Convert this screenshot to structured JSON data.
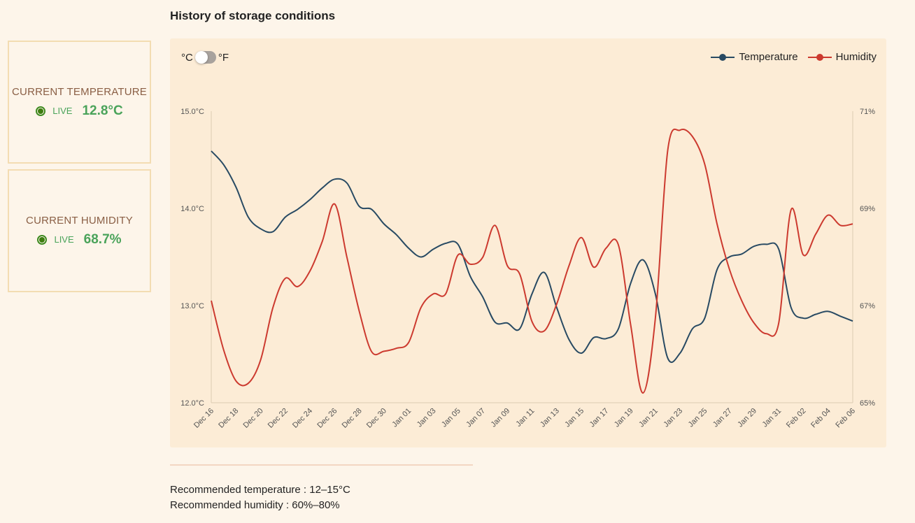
{
  "cards": {
    "temperature": {
      "title": "CURRENT TEMPERATURE",
      "live_label": "LIVE",
      "value": "12.8°C"
    },
    "humidity": {
      "title": "CURRENT HUMIDITY",
      "live_label": "LIVE",
      "value": "68.7%"
    }
  },
  "section_title": "History of storage conditions",
  "unit_toggle": {
    "left_label": "°C",
    "right_label": "°F",
    "selected": "°C"
  },
  "recommendations": {
    "temperature": "Recommended temperature : 12–15°C",
    "humidity": "Recommended humidity : 60%–80%"
  },
  "colors": {
    "temperature": "#284a63",
    "humidity": "#cc3a2f",
    "live": "#4aa35a",
    "card_border": "#f3dcb2",
    "panel_bg": "#fcecd6"
  },
  "chart_data": {
    "type": "line",
    "title": "History of storage conditions",
    "legend": [
      "Temperature",
      "Humidity"
    ],
    "legend_position": "top-right",
    "grid": false,
    "x": [
      "Dec 16",
      "Dec 17",
      "Dec 18",
      "Dec 19",
      "Dec 20",
      "Dec 21",
      "Dec 22",
      "Dec 23",
      "Dec 24",
      "Dec 25",
      "Dec 26",
      "Dec 27",
      "Dec 28",
      "Dec 29",
      "Dec 30",
      "Dec 31",
      "Jan 01",
      "Jan 02",
      "Jan 03",
      "Jan 04",
      "Jan 05",
      "Jan 06",
      "Jan 07",
      "Jan 08",
      "Jan 09",
      "Jan 10",
      "Jan 11",
      "Jan 12",
      "Jan 13",
      "Jan 14",
      "Jan 15",
      "Jan 16",
      "Jan 17",
      "Jan 18",
      "Jan 19",
      "Jan 20",
      "Jan 21",
      "Jan 22",
      "Jan 23",
      "Jan 24",
      "Jan 25",
      "Jan 26",
      "Jan 27",
      "Jan 28",
      "Jan 29",
      "Jan 30",
      "Jan 31",
      "Feb 01",
      "Feb 02",
      "Feb 03",
      "Feb 04",
      "Feb 05",
      "Feb 06"
    ],
    "x_tick_labels": [
      "Dec 16",
      "Dec 18",
      "Dec 20",
      "Dec 22",
      "Dec 24",
      "Dec 26",
      "Dec 28",
      "Dec 30",
      "Jan 01",
      "Jan 03",
      "Jan 05",
      "Jan 07",
      "Jan 09",
      "Jan 11",
      "Jan 13",
      "Jan 15",
      "Jan 17",
      "Jan 19",
      "Jan 21",
      "Jan 23",
      "Jan 25",
      "Jan 27",
      "Jan 29",
      "Jan 31",
      "Feb 02",
      "Feb 04",
      "Feb 06"
    ],
    "series": [
      {
        "name": "Temperature",
        "axis": "left",
        "unit": "°C",
        "values": [
          14.59,
          14.45,
          14.22,
          13.91,
          13.79,
          13.76,
          13.91,
          13.99,
          14.09,
          14.21,
          14.3,
          14.26,
          14.02,
          13.99,
          13.84,
          13.73,
          13.59,
          13.5,
          13.58,
          13.64,
          13.63,
          13.3,
          13.09,
          12.83,
          12.82,
          12.76,
          13.12,
          13.34,
          12.98,
          12.65,
          12.51,
          12.67,
          12.66,
          12.76,
          13.23,
          13.47,
          13.12,
          12.46,
          12.51,
          12.76,
          12.87,
          13.37,
          13.5,
          13.53,
          13.61,
          13.63,
          13.58,
          12.98,
          12.87,
          12.91,
          12.94,
          12.89,
          12.84
        ]
      },
      {
        "name": "Humidity",
        "axis": "right",
        "unit": "%",
        "values": [
          67.1,
          66.09,
          65.45,
          65.4,
          65.88,
          66.96,
          67.56,
          67.39,
          67.71,
          68.32,
          69.09,
          67.99,
          66.88,
          66.05,
          66.06,
          66.12,
          66.24,
          66.96,
          67.24,
          67.24,
          68.04,
          67.85,
          67.99,
          68.65,
          67.82,
          67.65,
          66.67,
          66.48,
          67.03,
          67.82,
          68.4,
          67.79,
          68.18,
          68.25,
          66.6,
          65.2,
          66.74,
          70.19,
          70.61,
          70.48,
          69.91,
          68.68,
          67.75,
          67.1,
          66.64,
          66.42,
          66.64,
          68.97,
          68.04,
          68.47,
          68.86,
          68.65,
          68.68
        ]
      }
    ],
    "y_left": {
      "label": "",
      "ticks": [
        "12.0°C",
        "13.0°C",
        "14.0°C",
        "15.0°C"
      ],
      "tick_values": [
        12,
        13,
        14,
        15
      ],
      "range": [
        12,
        15
      ]
    },
    "y_right": {
      "label": "",
      "ticks": [
        "65%",
        "67%",
        "69%",
        "71%"
      ],
      "tick_values": [
        65,
        67,
        69,
        71
      ],
      "range": [
        65,
        71
      ]
    }
  }
}
